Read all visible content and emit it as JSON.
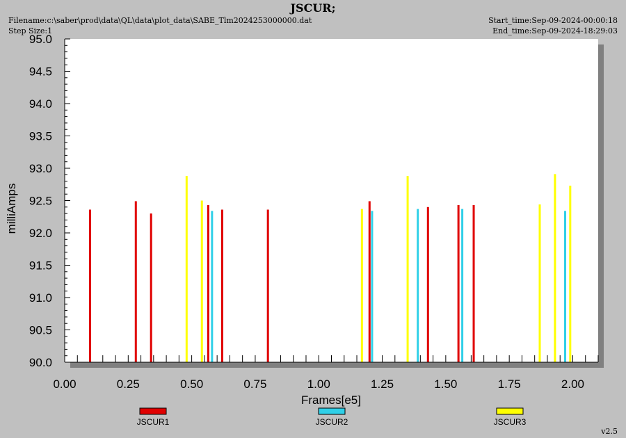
{
  "header": {
    "title": "JSCUR;",
    "filename": "Filename:c:\\saber\\prod\\data\\QL\\data\\plot_data\\SABE_Tlm2024253000000.dat",
    "step_size": "Step Size:1",
    "start_time": "Start_time:Sep-09-2024-00:00:18",
    "end_time": "End_time:Sep-09-2024-18:29:03",
    "version": "v2.5"
  },
  "colors": {
    "background": "#c0c0c0",
    "plot_area": "#ffffff",
    "shadow": "#808080",
    "JSCUR1": "#e00000",
    "JSCUR2": "#30d0e8",
    "JSCUR3": "#ffff00"
  },
  "chart_data": {
    "type": "bar",
    "title": "JSCUR;",
    "xlabel": "Frames[e5]",
    "ylabel": "milliAmps",
    "xlim": [
      0.0,
      2.1
    ],
    "ylim": [
      90.0,
      95.0
    ],
    "x_ticks": [
      "0.00",
      "0.25",
      "0.50",
      "0.75",
      "1.00",
      "1.25",
      "1.50",
      "1.75",
      "2.00"
    ],
    "y_ticks": [
      "90.0",
      "90.5",
      "91.0",
      "91.5",
      "92.0",
      "92.5",
      "93.0",
      "93.5",
      "94.0",
      "94.5",
      "95.0"
    ],
    "legend_position": "bottom",
    "series": [
      {
        "name": "JSCUR1",
        "color": "#e00000",
        "points": [
          [
            0.1,
            92.36
          ],
          [
            0.28,
            92.49
          ],
          [
            0.34,
            92.3
          ],
          [
            0.565,
            92.43
          ],
          [
            0.62,
            92.36
          ],
          [
            0.8,
            92.36
          ],
          [
            1.2,
            92.49
          ],
          [
            1.43,
            92.4
          ],
          [
            1.55,
            92.43
          ],
          [
            1.61,
            92.43
          ]
        ]
      },
      {
        "name": "JSCUR2",
        "color": "#30d0e8",
        "points": [
          [
            0.58,
            92.34
          ],
          [
            1.21,
            92.34
          ],
          [
            1.39,
            92.37
          ],
          [
            1.565,
            92.37
          ],
          [
            1.97,
            92.34
          ]
        ]
      },
      {
        "name": "JSCUR3",
        "color": "#ffff00",
        "points": [
          [
            0.48,
            92.88
          ],
          [
            0.54,
            92.5
          ],
          [
            1.17,
            92.37
          ],
          [
            1.35,
            92.88
          ],
          [
            1.87,
            92.44
          ],
          [
            1.93,
            92.91
          ],
          [
            1.99,
            92.73
          ]
        ]
      }
    ]
  }
}
